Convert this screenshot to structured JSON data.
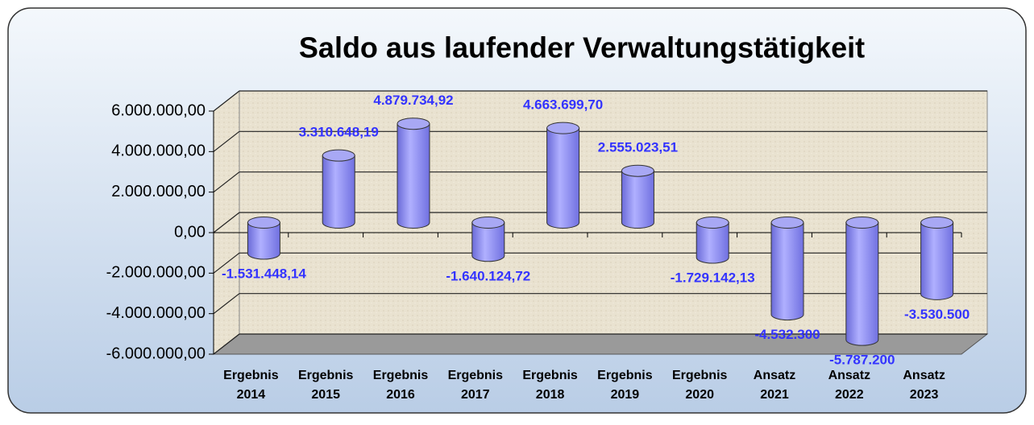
{
  "chart_data": {
    "type": "bar3d",
    "title": "Saldo aus laufender Verwaltungstätigkeit",
    "categories": [
      "Ergebnis 2014",
      "Ergebnis 2015",
      "Ergebnis 2016",
      "Ergebnis 2017",
      "Ergebnis 2018",
      "Ergebnis 2019",
      "Ergebnis 2020",
      "Ansatz 2021",
      "Ansatz 2022",
      "Ansatz 2023"
    ],
    "values": [
      -1531448.14,
      3310648.19,
      4879734.92,
      -1640124.72,
      4663699.7,
      2555023.51,
      -1729142.13,
      -4532300,
      -5787200,
      -3530500
    ],
    "value_labels": [
      "-1.531.448,14",
      "3.310.648,19",
      "4.879.734,92",
      "-1.640.124,72",
      "4.663.699,70",
      "2.555.023,51",
      "-1.729.142,13",
      "-4.532.300",
      "-5.787.200",
      "-3.530.500"
    ],
    "color": "#9999ff",
    "label_color": "#3333ff",
    "ylim": [
      -6000000,
      6000000
    ],
    "yticks": [
      {
        "value": -6000000,
        "label": "-6.000.000,00"
      },
      {
        "value": -4000000,
        "label": "-4.000.000,00"
      },
      {
        "value": -2000000,
        "label": "-2.000.000,00"
      },
      {
        "value": 0,
        "label": "0,00"
      },
      {
        "value": 2000000,
        "label": "2.000.000,00"
      },
      {
        "value": 4000000,
        "label": "4.000.000,00"
      },
      {
        "value": 6000000,
        "label": "6.000.000,00"
      }
    ],
    "grid": true
  }
}
